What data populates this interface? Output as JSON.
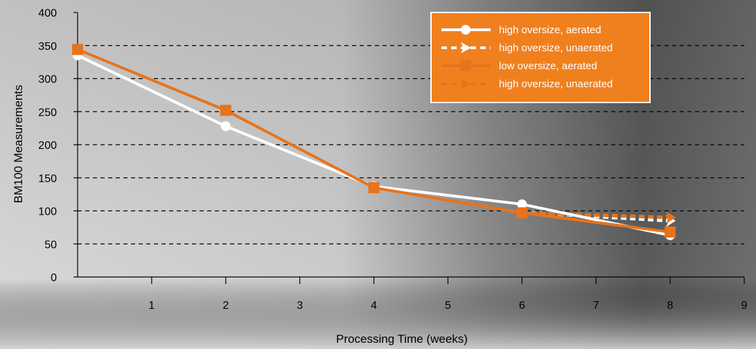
{
  "colors": {
    "aerated_high": "#ffffff",
    "unaerated_high": "#ffffff",
    "aerated_low": "#f0801e",
    "unaerated_high_2": "#f0801e",
    "grid": "#000000",
    "legend_bg": "#f0801e"
  },
  "chart_data": {
    "type": "line",
    "title": "",
    "xlabel": "Processing Time (weeks)",
    "ylabel": "BM100 Measurements",
    "xlim": [
      0,
      9
    ],
    "ylim": [
      0,
      400
    ],
    "xticks": [
      1,
      2,
      3,
      4,
      5,
      6,
      7,
      8,
      9
    ],
    "yticks": [
      0,
      50,
      100,
      150,
      200,
      250,
      300,
      350,
      400
    ],
    "grid": "horizontal dashed",
    "legend_position": "top-right",
    "series": [
      {
        "name": "high oversize, aerated",
        "line": "solid",
        "marker": "circle",
        "color": "white",
        "x": [
          0,
          2,
          4,
          6,
          8
        ],
        "y": [
          335,
          228,
          137,
          110,
          63
        ]
      },
      {
        "name": "high oversize, unaerated",
        "line": "dotted",
        "marker": "arrow",
        "color": "white",
        "x": [
          6,
          8
        ],
        "y": [
          98,
          85
        ]
      },
      {
        "name": "low oversize, aerated",
        "line": "solid",
        "marker": "square",
        "color": "orange",
        "x": [
          0,
          2,
          4,
          6,
          8
        ],
        "y": [
          344,
          252,
          135,
          97,
          68
        ]
      },
      {
        "name": "high oversize, unaerated",
        "line": "dotted",
        "marker": "arrow",
        "color": "orange",
        "x": [
          6,
          8
        ],
        "y": [
          97,
          90
        ]
      }
    ]
  }
}
